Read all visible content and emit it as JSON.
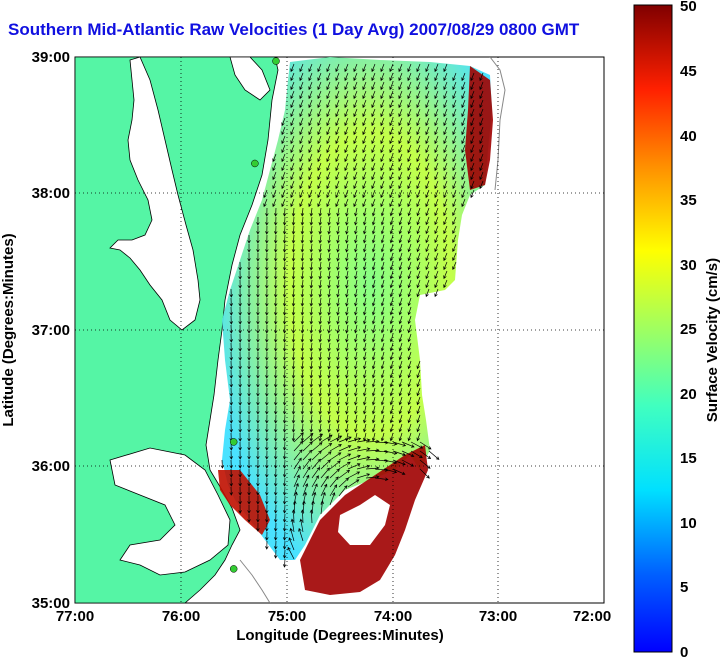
{
  "title": "Southern Mid-Atlantic Raw Velocities (1 Day Avg) 2007/08/29 0800 GMT",
  "x_axis": {
    "label": "Longitude (Degrees:Minutes)",
    "ticks": [
      "77:00",
      "76:00",
      "75:00",
      "74:00",
      "73:00",
      "72:00"
    ]
  },
  "y_axis": {
    "label": "Latitude (Degrees:Minutes)",
    "ticks": [
      "39:00",
      "38:00",
      "37:00",
      "36:00",
      "35:00"
    ]
  },
  "colorbar": {
    "label": "Surface Velocity (cm/s)",
    "ticks": [
      "50",
      "45",
      "40",
      "35",
      "30",
      "25",
      "20",
      "15",
      "10",
      "5",
      "0"
    ],
    "min": 0,
    "max": 50,
    "colormap": "jet"
  },
  "colors": {
    "land": "#55f5a5",
    "title": "#1010e0",
    "station": "#33cc33"
  },
  "map_extent": {
    "lon": [
      -77,
      -72
    ],
    "lat": [
      35,
      39
    ]
  },
  "grid": true,
  "stations": [
    {
      "lon": -75.1,
      "lat": 38.97
    },
    {
      "lon": -75.3,
      "lat": 38.22
    },
    {
      "lon": -75.5,
      "lat": 36.18
    },
    {
      "lon": -75.5,
      "lat": 35.25
    }
  ]
}
